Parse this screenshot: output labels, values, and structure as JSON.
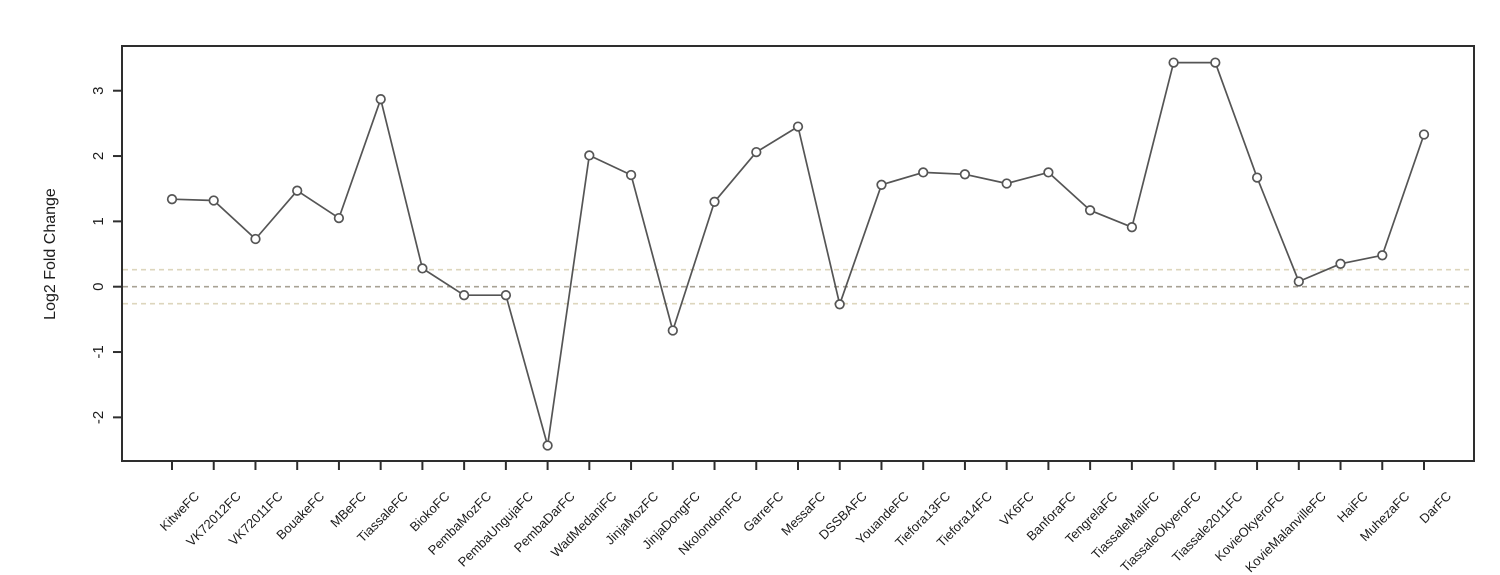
{
  "figure": {
    "background": "#ffffff"
  },
  "chart_data": {
    "type": "line",
    "title": "",
    "xlabel": "",
    "ylabel": "Log2 Fold Change",
    "categories": [
      "KitweFC",
      "VK72012FC",
      "VK72011FC",
      "BouakeFC",
      "MBeFC",
      "TiassaleFC",
      "BiokoFC",
      "PembaMozFC",
      "PembaUngujaFC",
      "PembaDarFC",
      "WadMedaniFC",
      "JinjaMozFC",
      "JinjaDongFC",
      "NkolondomFC",
      "GarreFC",
      "MessaFC",
      "DSSBAFC",
      "YouandeFC",
      "Tiefora13FC",
      "Tiefora14FC",
      "VK6FC",
      "BanforaFC",
      "TengrelaFC",
      "TiassaleMaliFC",
      "TiassaleOkyeroFC",
      "Tiassale2011FC",
      "KovieOkyeroFC",
      "KovieMalanvilleFC",
      "HaiFC",
      "MuhezaFC",
      "DarFC"
    ],
    "values": [
      1.34,
      1.32,
      0.73,
      1.47,
      1.05,
      2.87,
      0.28,
      -0.13,
      -0.13,
      -2.43,
      2.01,
      1.71,
      -0.67,
      1.3,
      2.06,
      2.45,
      -0.27,
      1.56,
      1.75,
      1.72,
      1.58,
      1.75,
      1.17,
      0.91,
      3.43,
      3.43,
      1.67,
      0.08,
      0.35,
      0.48,
      2.33
    ],
    "yticks": [
      -2,
      -1,
      0,
      1,
      2,
      3
    ],
    "ylim": [
      -2.67,
      3.69
    ],
    "grid": false,
    "legend": "none",
    "marker": "open-circle",
    "style": {
      "line_color": "#555555",
      "marker_stroke": "#555555",
      "marker_fill": "#ffffff",
      "axis_color": "#2e2e2e",
      "label_color": "#1c1c1c",
      "zero_line_color": "#a8a294",
      "threshold_line_color": "#ddd6bd"
    },
    "reference_lines": [
      {
        "name": "upper-threshold",
        "value": 0.26,
        "color": "#ddd6bd",
        "style": "dashed"
      },
      {
        "name": "zero-line",
        "value": 0.0,
        "color": "#a8a294",
        "style": "dashed"
      },
      {
        "name": "lower-threshold",
        "value": -0.26,
        "color": "#ddd6bd",
        "style": "dashed"
      }
    ]
  }
}
